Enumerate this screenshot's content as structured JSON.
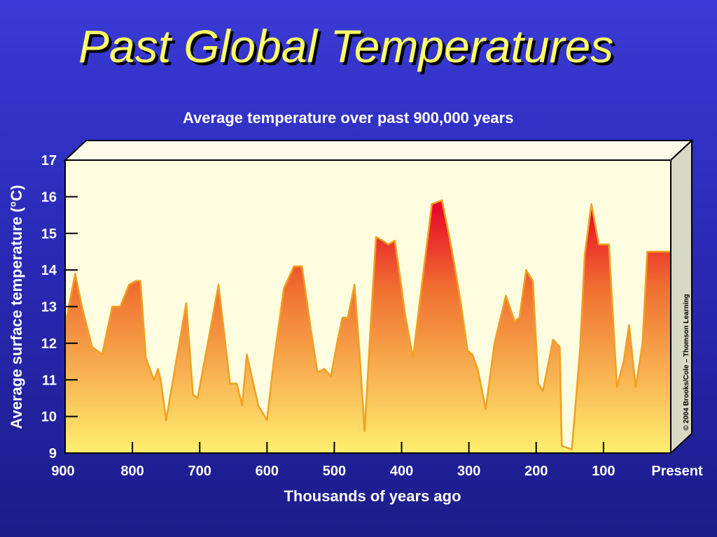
{
  "slide": {
    "title": "Past Global Temperatures",
    "copyright": "© 2004 Brooks/Cole – Thomson Learning"
  },
  "colors": {
    "background": "#2a2ab8",
    "title": "#ffff66",
    "plot_background": "#fffde0",
    "fill_top": "#e8002a",
    "fill_bottom": "#ffef70",
    "line": "#f0a020"
  },
  "chart_data": {
    "type": "area",
    "title": "Average temperature over past 900,000 years",
    "xlabel": "Thousands of years ago",
    "ylabel": "Average surface temperature (°C)",
    "xlim": [
      900,
      0
    ],
    "ylim": [
      9,
      17
    ],
    "x_ticks": [
      900,
      800,
      700,
      600,
      500,
      400,
      300,
      200,
      100,
      0
    ],
    "x_tick_labels": [
      "900",
      "800",
      "700",
      "600",
      "500",
      "400",
      "300",
      "200",
      "100",
      "Present"
    ],
    "y_ticks": [
      9,
      10,
      11,
      12,
      13,
      14,
      15,
      16,
      17
    ],
    "y_tick_labels": [
      "9",
      "10",
      "11",
      "12",
      "13",
      "14",
      "15",
      "16",
      "17"
    ],
    "grid": false,
    "series": [
      {
        "x": [
          900,
          885,
          875,
          860,
          845,
          830,
          818,
          805,
          795,
          788,
          780,
          768,
          762,
          758,
          750,
          735,
          720,
          710,
          703,
          690,
          672,
          655,
          645,
          637,
          630,
          613,
          600,
          590,
          575,
          560,
          548,
          535,
          525,
          515,
          505,
          495,
          488,
          480,
          470,
          462,
          455,
          445,
          438,
          428,
          420,
          410,
          400,
          395,
          383,
          370,
          355,
          340,
          330,
          322,
          312,
          302,
          295,
          287,
          275,
          262,
          245,
          232,
          225,
          215,
          205,
          197,
          190,
          175,
          165,
          162,
          147,
          135,
          128,
          118,
          107,
          100,
          92,
          80,
          70,
          62,
          52,
          42,
          35,
          25,
          14,
          0
        ],
        "y": [
          12.5,
          13.9,
          13.0,
          11.9,
          11.7,
          13.0,
          13.0,
          13.6,
          13.7,
          13.7,
          11.6,
          11.0,
          11.3,
          11.0,
          9.9,
          11.5,
          13.1,
          10.6,
          10.5,
          11.8,
          13.6,
          10.9,
          10.9,
          10.3,
          11.7,
          10.3,
          9.9,
          11.5,
          13.5,
          14.1,
          14.1,
          12.4,
          11.2,
          11.3,
          11.1,
          12.1,
          12.7,
          12.7,
          13.6,
          11.6,
          9.6,
          12.8,
          14.9,
          14.8,
          14.7,
          14.8,
          13.5,
          12.8,
          11.6,
          13.6,
          15.8,
          15.9,
          15.0,
          14.2,
          13.1,
          11.8,
          11.7,
          11.3,
          10.2,
          12.0,
          13.3,
          12.6,
          12.7,
          14.0,
          13.7,
          10.9,
          10.7,
          12.1,
          11.9,
          9.2,
          9.1,
          11.8,
          14.4,
          15.8,
          14.7,
          14.7,
          14.7,
          10.8,
          11.5,
          12.5,
          10.8,
          12.0,
          14.5,
          14.5,
          14.5,
          14.5
        ]
      }
    ]
  }
}
